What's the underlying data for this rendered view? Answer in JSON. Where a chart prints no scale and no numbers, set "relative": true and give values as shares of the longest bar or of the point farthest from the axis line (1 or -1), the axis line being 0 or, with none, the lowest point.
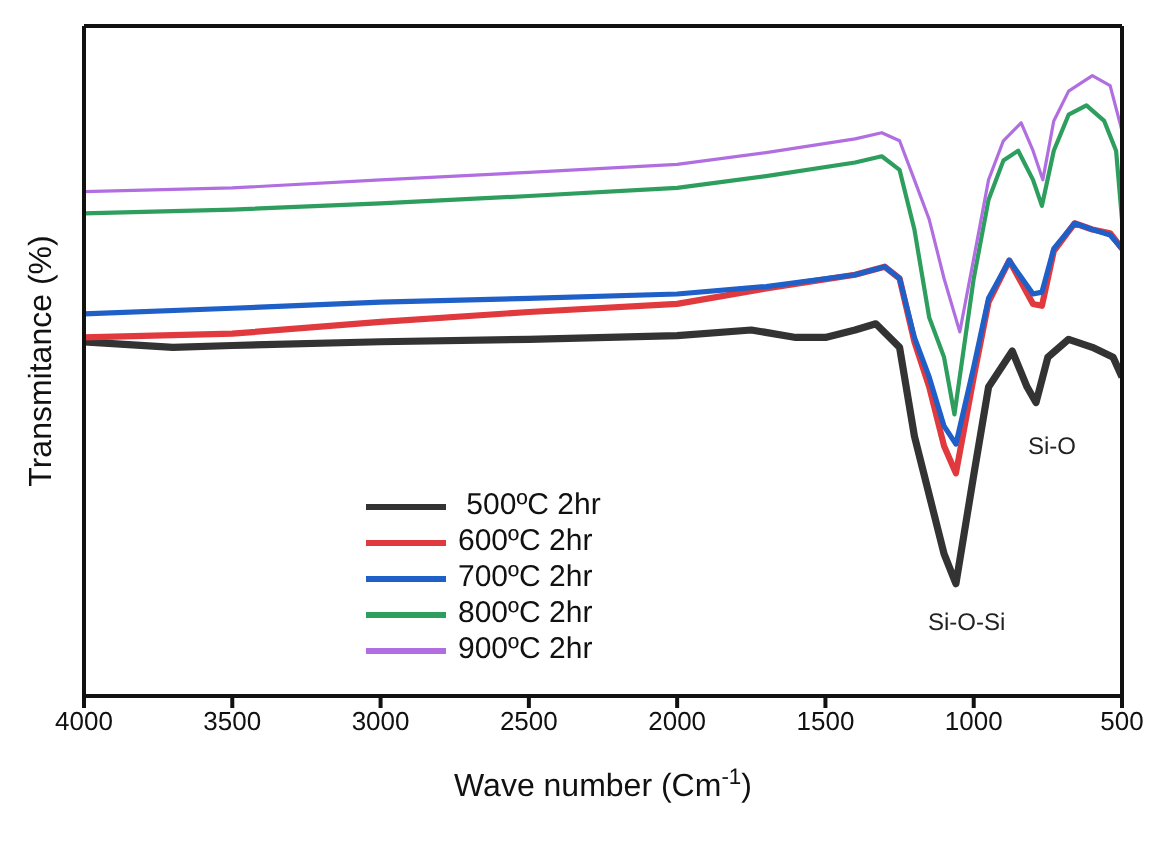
{
  "chart_data": {
    "type": "line",
    "relative": true,
    "xlabel": "Wave number (Cm$^{-1}$)",
    "ylabel": "Transmitance (%)",
    "xlim": [
      4000,
      500
    ],
    "xticks": [
      4000,
      3500,
      3000,
      2500,
      2000,
      1500,
      1000,
      500
    ],
    "grid": false,
    "legend": "bottom left",
    "marker": "none",
    "line_style": "solid",
    "annotations": [
      "Si-O",
      "Si-O-Si"
    ],
    "series": [
      {
        "name": " 500ºC 2hr",
        "color": "#333333",
        "x": [
          4000,
          3700,
          3500,
          3000,
          2500,
          2000,
          1750,
          1600,
          1500,
          1400,
          1330,
          1250,
          1200,
          1150,
          1100,
          1060,
          1000,
          950,
          870,
          820,
          790,
          750,
          680,
          600,
          530,
          500
        ],
        "values": [
          0.571,
          0.562,
          0.565,
          0.571,
          0.575,
          0.581,
          0.59,
          0.578,
          0.578,
          0.59,
          0.6,
          0.562,
          0.419,
          0.324,
          0.229,
          0.181,
          0.356,
          0.498,
          0.556,
          0.498,
          0.473,
          0.546,
          0.575,
          0.562,
          0.546,
          0.514
        ]
      },
      {
        "name": "600ºC 2hr",
        "color": "#e0393e",
        "x": [
          4000,
          3500,
          3000,
          2500,
          2000,
          1700,
          1400,
          1300,
          1250,
          1200,
          1150,
          1100,
          1060,
          1000,
          950,
          880,
          800,
          770,
          730,
          660,
          600,
          540,
          500
        ],
        "values": [
          0.578,
          0.584,
          0.603,
          0.619,
          0.632,
          0.657,
          0.679,
          0.692,
          0.673,
          0.571,
          0.498,
          0.403,
          0.359,
          0.514,
          0.635,
          0.702,
          0.632,
          0.629,
          0.717,
          0.762,
          0.752,
          0.746,
          0.721
        ]
      },
      {
        "name": "700ºC 2hr",
        "color": "#1f5fc8",
        "x": [
          4000,
          3500,
          3000,
          2500,
          2000,
          1700,
          1400,
          1300,
          1250,
          1200,
          1150,
          1100,
          1060,
          1000,
          950,
          880,
          800,
          770,
          730,
          660,
          600,
          540,
          500
        ],
        "values": [
          0.616,
          0.625,
          0.635,
          0.641,
          0.648,
          0.66,
          0.679,
          0.692,
          0.673,
          0.578,
          0.514,
          0.435,
          0.406,
          0.53,
          0.641,
          0.702,
          0.648,
          0.651,
          0.721,
          0.762,
          0.752,
          0.743,
          0.721
        ]
      },
      {
        "name": "800ºC 2hr",
        "color": "#2e9e5e",
        "x": [
          4000,
          3500,
          3000,
          2500,
          2000,
          1700,
          1400,
          1310,
          1250,
          1200,
          1150,
          1100,
          1065,
          1000,
          950,
          900,
          850,
          800,
          770,
          730,
          680,
          620,
          560,
          520,
          500
        ],
        "values": [
          0.778,
          0.784,
          0.794,
          0.806,
          0.819,
          0.838,
          0.86,
          0.87,
          0.848,
          0.752,
          0.61,
          0.546,
          0.454,
          0.673,
          0.8,
          0.863,
          0.879,
          0.832,
          0.79,
          0.879,
          0.937,
          0.952,
          0.927,
          0.879,
          0.768
        ]
      },
      {
        "name": "900ºC 2hr",
        "color": "#b06ee0",
        "x": [
          4000,
          3500,
          3000,
          2500,
          2000,
          1700,
          1400,
          1310,
          1250,
          1200,
          1150,
          1100,
          1047,
          1000,
          950,
          900,
          840,
          800,
          767,
          730,
          680,
          600,
          540,
          500
        ],
        "values": [
          0.813,
          0.819,
          0.832,
          0.844,
          0.857,
          0.876,
          0.898,
          0.908,
          0.895,
          0.832,
          0.768,
          0.673,
          0.587,
          0.705,
          0.832,
          0.895,
          0.924,
          0.879,
          0.832,
          0.927,
          0.975,
          1,
          0.984,
          0.911
        ]
      }
    ]
  }
}
